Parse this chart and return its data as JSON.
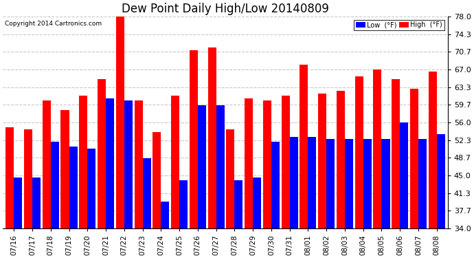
{
  "title": "Dew Point Daily High/Low 20140809",
  "copyright": "Copyright 2014 Cartronics.com",
  "legend_low": "Low  (°F)",
  "legend_high": "High  (°F)",
  "low_color": "#0000ff",
  "high_color": "#ff0000",
  "background_color": "#ffffff",
  "grid_color": "#c8c8c8",
  "ylim": [
    34.0,
    78.0
  ],
  "yticks": [
    34.0,
    37.7,
    41.3,
    45.0,
    48.7,
    52.3,
    56.0,
    59.7,
    63.3,
    67.0,
    70.7,
    74.3,
    78.0
  ],
  "categories": [
    "07/16",
    "07/17",
    "07/18",
    "07/19",
    "07/20",
    "07/21",
    "07/22",
    "07/23",
    "07/24",
    "07/25",
    "07/26",
    "07/27",
    "07/28",
    "07/29",
    "07/30",
    "07/31",
    "08/01",
    "08/02",
    "08/03",
    "08/04",
    "08/05",
    "08/06",
    "08/07",
    "08/08"
  ],
  "high_values": [
    55.0,
    54.5,
    60.5,
    58.5,
    61.5,
    65.0,
    78.0,
    60.5,
    54.0,
    61.5,
    71.0,
    71.5,
    54.5,
    61.0,
    60.5,
    61.5,
    68.0,
    62.0,
    62.5,
    65.5,
    67.0,
    65.0,
    63.0,
    66.5
  ],
  "low_values": [
    44.5,
    44.5,
    52.0,
    51.0,
    50.5,
    61.0,
    60.5,
    48.5,
    39.5,
    44.0,
    59.5,
    59.5,
    44.0,
    44.5,
    52.0,
    53.0,
    53.0,
    52.5,
    52.5,
    52.5,
    52.5,
    56.0,
    52.5,
    53.5
  ],
  "bar_width": 0.45,
  "figsize": [
    6.9,
    3.75
  ],
  "dpi": 100
}
